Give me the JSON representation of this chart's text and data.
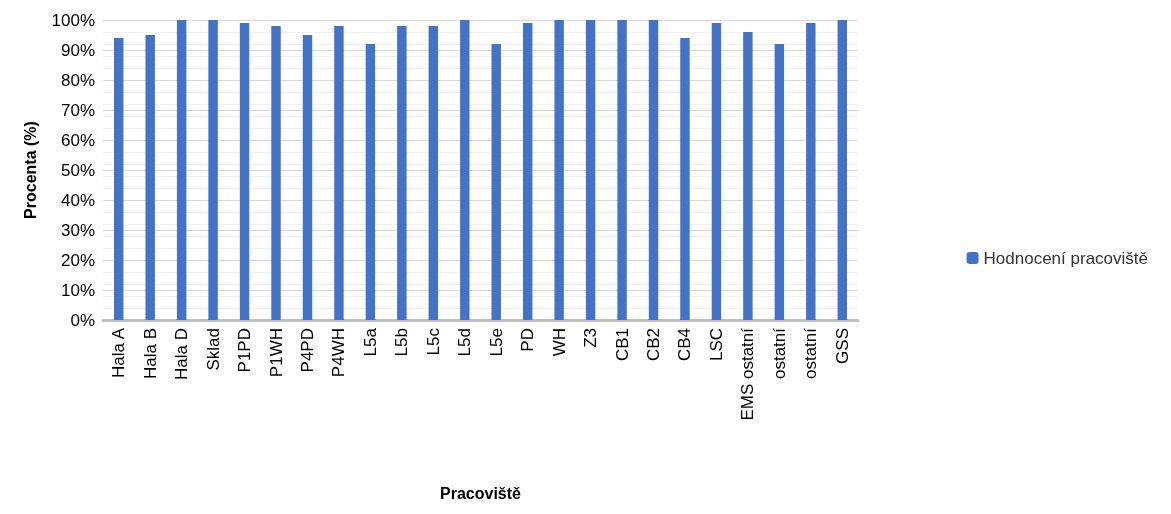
{
  "chart_data": {
    "type": "bar",
    "xlabel": "Pracoviště",
    "ylabel": "Procenta (%)",
    "categories": [
      "Hala A",
      "Hala B",
      "Hala D",
      "Sklad",
      "P1PD",
      "P1WH",
      "P4PD",
      "P4WH",
      "L5a",
      "L5b",
      "L5c",
      "L5d",
      "L5e",
      "PD",
      "WH",
      "Z3",
      "CB1",
      "CB2",
      "CB4",
      "LSC",
      "EMS ostatní",
      "ostatní",
      "ostatní",
      "GSS"
    ],
    "series": [
      {
        "name": "Hodnocení pracoviště",
        "color": "#4472c4",
        "values": [
          94,
          95,
          100,
          100,
          99,
          98,
          95,
          98,
          92,
          98,
          98,
          100,
          92,
          99,
          100,
          100,
          100,
          100,
          94,
          99,
          96,
          92,
          99,
          100
        ]
      }
    ],
    "ylim": [
      0,
      100
    ],
    "yticks": [
      {
        "value": 0,
        "label": "0%"
      },
      {
        "value": 10,
        "label": "10%"
      },
      {
        "value": 20,
        "label": "20%"
      },
      {
        "value": 30,
        "label": "30%"
      },
      {
        "value": 40,
        "label": "40%"
      },
      {
        "value": 50,
        "label": "50%"
      },
      {
        "value": 60,
        "label": "60%"
      },
      {
        "value": 70,
        "label": "70%"
      },
      {
        "value": 80,
        "label": "80%"
      },
      {
        "value": 90,
        "label": "90%"
      },
      {
        "value": 100,
        "label": "100%"
      }
    ],
    "grid": "y",
    "legend": "right"
  }
}
